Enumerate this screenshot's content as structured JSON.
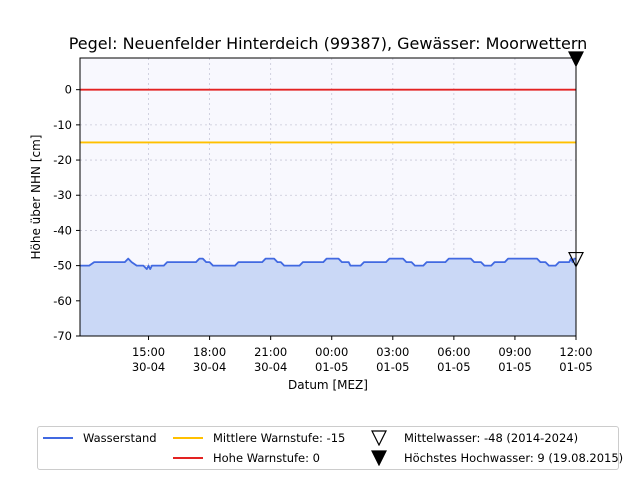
{
  "chart_data": {
    "type": "line",
    "title": "Pegel:  Neuenfelder Hinterdeich (99387), Gewässer:  Moorwettern",
    "xlabel": "Datum [MEZ]",
    "ylabel": "Höhe über NHN [cm]",
    "ylim": [
      -70,
      9
    ],
    "xlim": [
      "2024-04-30 11:38",
      "2024-05-01 12:00"
    ],
    "grid": true,
    "yticks": [
      0,
      -10,
      -20,
      -30,
      -40,
      -50,
      -60,
      -70
    ],
    "xticks": [
      {
        "x": "2024-04-30 15:00",
        "label1": "15:00",
        "label2": "30-04"
      },
      {
        "x": "2024-04-30 18:00",
        "label1": "18:00",
        "label2": "30-04"
      },
      {
        "x": "2024-04-30 21:00",
        "label1": "21:00",
        "label2": "30-04"
      },
      {
        "x": "2024-05-01 00:00",
        "label1": "00:00",
        "label2": "01-05"
      },
      {
        "x": "2024-05-01 03:00",
        "label1": "03:00",
        "label2": "01-05"
      },
      {
        "x": "2024-05-01 06:00",
        "label1": "06:00",
        "label2": "01-05"
      },
      {
        "x": "2024-05-01 09:00",
        "label1": "09:00",
        "label2": "01-05"
      },
      {
        "x": "2024-05-01 12:00",
        "label1": "12:00",
        "label2": "01-05"
      }
    ],
    "series": [
      {
        "name": "Wasserstand",
        "color": "#4169e1",
        "fill": "#cad8f6",
        "points": [
          [
            "2024-04-30 11:38",
            -50
          ],
          [
            "2024-04-30 12:05",
            -50
          ],
          [
            "2024-04-30 12:20",
            -49
          ],
          [
            "2024-04-30 13:50",
            -49
          ],
          [
            "2024-04-30 14:00",
            -48
          ],
          [
            "2024-04-30 14:10",
            -49
          ],
          [
            "2024-04-30 14:25",
            -50
          ],
          [
            "2024-04-30 14:45",
            -50
          ],
          [
            "2024-04-30 14:55",
            -51
          ],
          [
            "2024-04-30 15:00",
            -50
          ],
          [
            "2024-04-30 15:05",
            -51
          ],
          [
            "2024-04-30 15:10",
            -50
          ],
          [
            "2024-04-30 15:45",
            -50
          ],
          [
            "2024-04-30 15:55",
            -49
          ],
          [
            "2024-04-30 17:20",
            -49
          ],
          [
            "2024-04-30 17:30",
            -48
          ],
          [
            "2024-04-30 17:40",
            -48
          ],
          [
            "2024-04-30 17:50",
            -49
          ],
          [
            "2024-04-30 18:00",
            -49
          ],
          [
            "2024-04-30 18:10",
            -50
          ],
          [
            "2024-04-30 19:15",
            -50
          ],
          [
            "2024-04-30 19:25",
            -49
          ],
          [
            "2024-04-30 20:35",
            -49
          ],
          [
            "2024-04-30 20:45",
            -48
          ],
          [
            "2024-04-30 21:10",
            -48
          ],
          [
            "2024-04-30 21:20",
            -49
          ],
          [
            "2024-04-30 21:30",
            -49
          ],
          [
            "2024-04-30 21:40",
            -50
          ],
          [
            "2024-04-30 22:25",
            -50
          ],
          [
            "2024-04-30 22:35",
            -49
          ],
          [
            "2024-04-30 23:35",
            -49
          ],
          [
            "2024-04-30 23:45",
            -48
          ],
          [
            "2024-05-01 00:10",
            -48
          ],
          [
            "2024-05-01 00:20",
            -48
          ],
          [
            "2024-05-01 00:30",
            -49
          ],
          [
            "2024-05-01 00:50",
            -49
          ],
          [
            "2024-05-01 00:55",
            -50
          ],
          [
            "2024-05-01 01:25",
            -50
          ],
          [
            "2024-05-01 01:35",
            -49
          ],
          [
            "2024-05-01 02:40",
            -49
          ],
          [
            "2024-05-01 02:50",
            -48
          ],
          [
            "2024-05-01 03:30",
            -48
          ],
          [
            "2024-05-01 03:40",
            -49
          ],
          [
            "2024-05-01 03:55",
            -49
          ],
          [
            "2024-05-01 04:05",
            -50
          ],
          [
            "2024-05-01 04:30",
            -50
          ],
          [
            "2024-05-01 04:40",
            -49
          ],
          [
            "2024-05-01 05:35",
            -49
          ],
          [
            "2024-05-01 05:45",
            -48
          ],
          [
            "2024-05-01 06:50",
            -48
          ],
          [
            "2024-05-01 07:00",
            -49
          ],
          [
            "2024-05-01 07:20",
            -49
          ],
          [
            "2024-05-01 07:30",
            -50
          ],
          [
            "2024-05-01 07:50",
            -50
          ],
          [
            "2024-05-01 08:00",
            -49
          ],
          [
            "2024-05-01 08:30",
            -49
          ],
          [
            "2024-05-01 08:40",
            -48
          ],
          [
            "2024-05-01 10:05",
            -48
          ],
          [
            "2024-05-01 10:15",
            -49
          ],
          [
            "2024-05-01 10:30",
            -49
          ],
          [
            "2024-05-01 10:40",
            -50
          ],
          [
            "2024-05-01 11:00",
            -50
          ],
          [
            "2024-05-01 11:10",
            -49
          ],
          [
            "2024-05-01 11:40",
            -49
          ],
          [
            "2024-05-01 11:45",
            -48
          ],
          [
            "2024-05-01 11:50",
            -49
          ],
          [
            "2024-05-01 11:55",
            -48
          ],
          [
            "2024-05-01 12:00",
            -48
          ]
        ]
      },
      {
        "name": "Mittlere Warnstufe: -15",
        "color": "#ffc000",
        "y": -15
      },
      {
        "name": "Hohe Warnstufe: 0",
        "color": "#e32222",
        "y": 0
      }
    ],
    "markers": [
      {
        "name": "Mittelwasser: -48 (2014-2024)",
        "x": "2024-05-01 12:00",
        "y": -48,
        "symbol": "triangle-down-open",
        "color": "#000000"
      },
      {
        "name": "Höchstes Hochwasser: 9 (19.08.2015)",
        "x": "2024-05-01 12:00",
        "y": 9,
        "symbol": "triangle-down-filled",
        "color": "#000000"
      }
    ],
    "legend_position": "bottom-outside",
    "plot_background": "#f8f8fe"
  }
}
